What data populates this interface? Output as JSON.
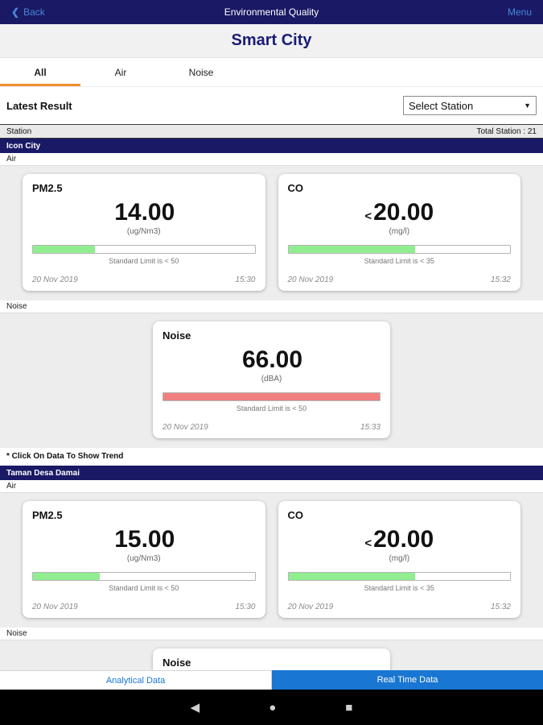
{
  "colors": {
    "navy": "#191965",
    "accent": "#ee8f2d",
    "primary": "#1976d2",
    "link": "#4a86d8"
  },
  "icons": {
    "back_chevron": "❮",
    "select_caret": "▼",
    "nav_back": "◀",
    "nav_home": "●",
    "nav_recents": "■"
  },
  "top_bar": {
    "back_label": "Back",
    "title": "Environmental Quality",
    "menu_label": "Menu"
  },
  "header": {
    "title": "Smart City"
  },
  "tabs": [
    {
      "label": "All",
      "active": true
    },
    {
      "label": "Air",
      "active": false
    },
    {
      "label": "Noise",
      "active": false
    }
  ],
  "toolbar": {
    "latest_result_label": "Latest Result",
    "station_select_value": "Select Station"
  },
  "station_header": {
    "label": "Station",
    "total": "Total Station : 21"
  },
  "stations": [
    {
      "name": "Icon City",
      "air_label": "Air",
      "noise_label": "Noise",
      "air_cards": [
        {
          "title": "PM2.5",
          "prefix": "",
          "value": "14.00",
          "unit": "(ug/Nm3)",
          "bar_percent": 28,
          "bar_color": "#90ee90",
          "limit": "Standard Limit is < 50",
          "date": "20 Nov 2019",
          "time": "15:30"
        },
        {
          "title": "CO",
          "prefix": "<",
          "value": "20.00",
          "unit": "(mg/l)",
          "bar_percent": 57,
          "bar_color": "#90ee90",
          "limit": "Standard Limit is < 35",
          "date": "20 Nov 2019",
          "time": "15:32"
        }
      ],
      "noise_cards": [
        {
          "title": "Noise",
          "prefix": "",
          "value": "66.00",
          "unit": "(dBA)",
          "bar_percent": 100,
          "bar_color": "#f08080",
          "limit": "Standard Limit is < 50",
          "date": "20 Nov 2019",
          "time": "15:33"
        }
      ],
      "footnote": "* Click On Data To Show Trend"
    },
    {
      "name": "Taman Desa Damai",
      "air_label": "Air",
      "noise_label": "Noise",
      "air_cards": [
        {
          "title": "PM2.5",
          "prefix": "",
          "value": "15.00",
          "unit": "(ug/Nm3)",
          "bar_percent": 30,
          "bar_color": "#90ee90",
          "limit": "Standard Limit is < 50",
          "date": "20 Nov 2019",
          "time": "15:30"
        },
        {
          "title": "CO",
          "prefix": "<",
          "value": "20.00",
          "unit": "(mg/l)",
          "bar_percent": 57,
          "bar_color": "#90ee90",
          "limit": "Standard Limit is < 35",
          "date": "20 Nov 2019",
          "time": "15:32"
        }
      ],
      "noise_cards": [
        {
          "title": "Noise"
        }
      ]
    }
  ],
  "bottom_bar": {
    "analytical_label": "Analytical Data",
    "realtime_label": "Real Time Data"
  }
}
